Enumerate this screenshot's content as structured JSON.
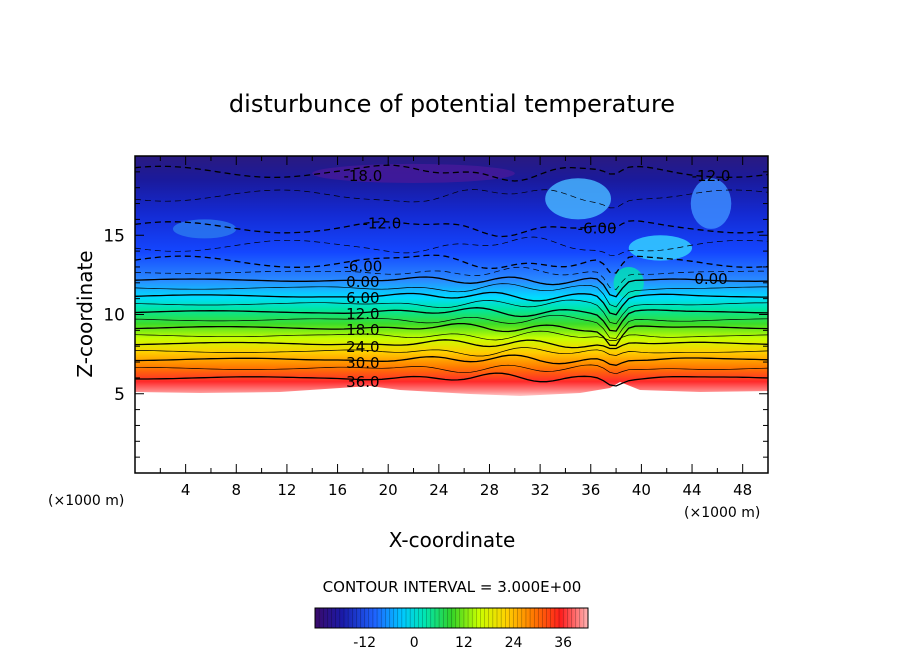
{
  "chart_data": {
    "type": "heatmap",
    "title": "disturbunce of potential temperature",
    "xlabel": "X-coordinate",
    "ylabel": "Z-coordinate",
    "x_unit": "(×1000 m)",
    "z_unit": "(×1000 m)",
    "xlim": [
      0,
      50
    ],
    "ylim": [
      0,
      20
    ],
    "x_ticks": [
      "4",
      "8",
      "12",
      "16",
      "20",
      "24",
      "28",
      "32",
      "36",
      "40",
      "44",
      "48"
    ],
    "y_ticks": [
      "5",
      "10",
      "15"
    ],
    "contour_interval_text": "CONTOUR INTERVAL = 3.000E+00",
    "contour_interval": 3.0,
    "contour_labels": [
      {
        "text": "-18.0",
        "x": 18.0,
        "z": 18.8
      },
      {
        "text": "-12.0",
        "x": 19.5,
        "z": 15.8
      },
      {
        "text": "-12.0",
        "x": 45.5,
        "z": 18.8
      },
      {
        "text": "-6.00",
        "x": 36.5,
        "z": 15.5
      },
      {
        "text": "-6.00",
        "x": 18.0,
        "z": 13.1
      },
      {
        "text": "0.00",
        "x": 18.0,
        "z": 12.1
      },
      {
        "text": "0.00",
        "x": 45.5,
        "z": 12.3
      },
      {
        "text": "6.00",
        "x": 18.0,
        "z": 11.1
      },
      {
        "text": "12.0",
        "x": 18.0,
        "z": 10.1
      },
      {
        "text": "18.0",
        "x": 18.0,
        "z": 9.1
      },
      {
        "text": "24.0",
        "x": 18.0,
        "z": 8.0
      },
      {
        "text": "30.0",
        "x": 18.0,
        "z": 7.0
      },
      {
        "text": "36.0",
        "x": 18.0,
        "z": 5.8
      }
    ],
    "colorbar": {
      "min": -24,
      "max": 42,
      "tick_labels": [
        "-12",
        "0",
        "12",
        "24",
        "36"
      ],
      "tick_values": [
        -12,
        0,
        12,
        24,
        36
      ]
    },
    "field_profile": {
      "description_levels_z": [
        5,
        6,
        7,
        8,
        9,
        10,
        11,
        12,
        13,
        14,
        15,
        16,
        17,
        18,
        19,
        20
      ],
      "values": [
        38,
        36,
        31,
        25,
        19,
        13,
        7,
        1,
        -5,
        -8,
        -11,
        -13,
        -14,
        -16,
        -18,
        -19
      ]
    },
    "grid": false,
    "legend": "none"
  }
}
